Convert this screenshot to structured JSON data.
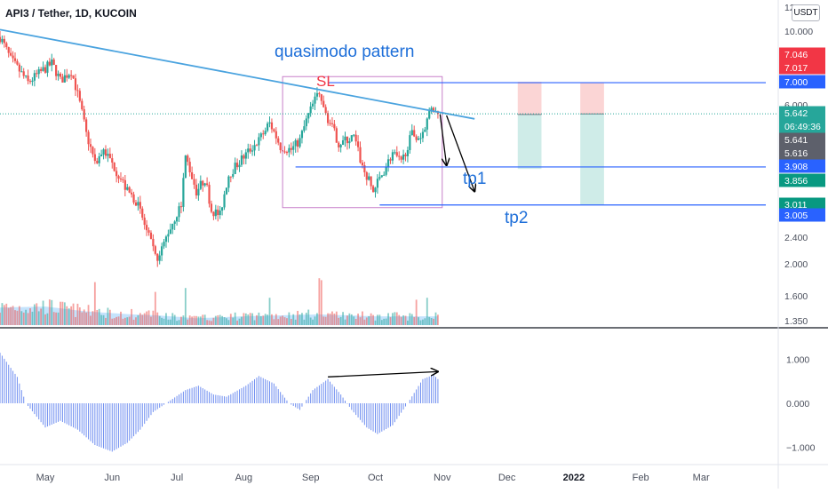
{
  "header": {
    "symbol": "API3 / Tether, 1D, KUCOIN",
    "currency": "USDT"
  },
  "colors": {
    "up": "#26a69a",
    "down": "#ef5350",
    "trendline": "#2962ff",
    "sky": "#4aa3df",
    "annotation_blue": "#1e6fd9",
    "sl_red": "#f23645",
    "box": "#c77ec9",
    "volume_area": "#bbdefb",
    "macd": "#6f8ef0"
  },
  "annotations": {
    "pattern": "quasimodo pattern",
    "sl": "SL",
    "tp1": "tp1",
    "tp2": "tp2"
  },
  "price_axis": {
    "ticks": [
      "12.000",
      "10.000",
      "6.000",
      "2.400",
      "2.000",
      "1.600",
      "1.350"
    ],
    "labels": [
      {
        "text": "7.046",
        "bg": "#f23645",
        "fg": "#ffffff"
      },
      {
        "text": "7.017",
        "bg": "#f23645",
        "fg": "#ffffff"
      },
      {
        "text": "7.000",
        "bg": "#2962ff",
        "fg": "#ffffff"
      },
      {
        "text": "5.642",
        "bg": "#26a69a",
        "fg": "#ffffff"
      },
      {
        "text": "06:49:36",
        "bg": "#26a69a",
        "fg": "#ffffff"
      },
      {
        "text": "5.641",
        "bg": "#5d606b",
        "fg": "#ffffff"
      },
      {
        "text": "5.616",
        "bg": "#5d606b",
        "fg": "#ffffff"
      },
      {
        "text": "3.908",
        "bg": "#2962ff",
        "fg": "#ffffff"
      },
      {
        "text": "3.856",
        "bg": "#089981",
        "fg": "#ffffff"
      },
      {
        "text": "3.011",
        "bg": "#089981",
        "fg": "#ffffff"
      },
      {
        "text": "3.005",
        "bg": "#2962ff",
        "fg": "#ffffff"
      }
    ]
  },
  "indicator_axis": {
    "ticks": [
      "1.000",
      "0.000",
      "−1.000"
    ]
  },
  "time_axis": {
    "labels": [
      "May",
      "Jun",
      "Jul",
      "Aug",
      "Sep",
      "Oct",
      "Nov",
      "Dec",
      "2022",
      "Feb",
      "Mar"
    ]
  },
  "chart_data": {
    "type": "candlestick",
    "x_start": "2021-04-10",
    "x_end": "2022-03-31",
    "y_scale": "log",
    "ylim": [
      1.35,
      12.0
    ],
    "anchors": [
      [
        "2021-04-10",
        9.6
      ],
      [
        "2021-04-15",
        8.2
      ],
      [
        "2021-04-23",
        7.0
      ],
      [
        "2021-05-04",
        8.0
      ],
      [
        "2021-05-08",
        7.1
      ],
      [
        "2021-05-13",
        7.6
      ],
      [
        "2021-05-20",
        4.9
      ],
      [
        "2021-05-24",
        4.0
      ],
      [
        "2021-05-28",
        4.4
      ],
      [
        "2021-06-08",
        3.3
      ],
      [
        "2021-06-12",
        3.1
      ],
      [
        "2021-06-17",
        2.5
      ],
      [
        "2021-06-22",
        2.0
      ],
      [
        "2021-06-26",
        2.4
      ],
      [
        "2021-07-03",
        3.0
      ],
      [
        "2021-07-05",
        4.2
      ],
      [
        "2021-07-10",
        3.3
      ],
      [
        "2021-07-14",
        3.6
      ],
      [
        "2021-07-17",
        2.9
      ],
      [
        "2021-07-21",
        2.8
      ],
      [
        "2021-07-25",
        3.7
      ],
      [
        "2021-08-01",
        4.2
      ],
      [
        "2021-08-08",
        4.7
      ],
      [
        "2021-08-13",
        5.3
      ],
      [
        "2021-08-18",
        4.5
      ],
      [
        "2021-08-23",
        4.4
      ],
      [
        "2021-08-27",
        4.7
      ],
      [
        "2021-08-31",
        5.6
      ],
      [
        "2021-09-05",
        6.6
      ],
      [
        "2021-09-07",
        5.8
      ],
      [
        "2021-09-14",
        4.6
      ],
      [
        "2021-09-21",
        4.8
      ],
      [
        "2021-09-25",
        3.9
      ],
      [
        "2021-09-30",
        3.3
      ],
      [
        "2021-10-04",
        3.7
      ],
      [
        "2021-10-09",
        4.3
      ],
      [
        "2021-10-13",
        4.0
      ],
      [
        "2021-10-18",
        4.9
      ],
      [
        "2021-10-22",
        4.8
      ],
      [
        "2021-10-27",
        5.8
      ],
      [
        "2021-10-30",
        5.64
      ]
    ],
    "volume_profile": [
      [
        "2021-04-10",
        0.9
      ],
      [
        "2021-05-01",
        0.95
      ],
      [
        "2021-05-20",
        0.7
      ],
      [
        "2021-06-10",
        0.55
      ],
      [
        "2021-06-22",
        0.5
      ],
      [
        "2021-07-10",
        0.35
      ],
      [
        "2021-08-01",
        0.45
      ],
      [
        "2021-09-05",
        0.55
      ],
      [
        "2021-10-01",
        0.45
      ],
      [
        "2021-10-30",
        0.45
      ]
    ],
    "volume_spikes": [
      [
        "2021-05-24",
        2.2
      ],
      [
        "2021-06-21",
        1.7
      ],
      [
        "2021-07-05",
        1.9
      ],
      [
        "2021-08-13",
        1.4
      ],
      [
        "2021-09-05",
        2.4
      ],
      [
        "2021-09-06",
        2.3
      ],
      [
        "2021-10-20",
        1.3
      ],
      [
        "2021-10-25",
        1.4
      ]
    ],
    "indicator_values": [
      [
        "2021-04-10",
        1.15
      ],
      [
        "2021-04-18",
        0.6
      ],
      [
        "2021-04-22",
        0.0
      ],
      [
        "2021-05-01",
        -0.55
      ],
      [
        "2021-05-08",
        -0.4
      ],
      [
        "2021-05-16",
        -0.6
      ],
      [
        "2021-05-24",
        -0.95
      ],
      [
        "2021-06-01",
        -1.1
      ],
      [
        "2021-06-08",
        -0.9
      ],
      [
        "2021-06-14",
        -0.6
      ],
      [
        "2021-06-20",
        -0.2
      ],
      [
        "2021-06-26",
        0.0
      ],
      [
        "2021-07-05",
        0.3
      ],
      [
        "2021-07-11",
        0.4
      ],
      [
        "2021-07-18",
        0.2
      ],
      [
        "2021-07-24",
        0.15
      ],
      [
        "2021-08-02",
        0.4
      ],
      [
        "2021-08-08",
        0.62
      ],
      [
        "2021-08-15",
        0.45
      ],
      [
        "2021-08-22",
        0.0
      ],
      [
        "2021-08-27",
        -0.15
      ],
      [
        "2021-09-02",
        0.3
      ],
      [
        "2021-09-09",
        0.55
      ],
      [
        "2021-09-15",
        0.2
      ],
      [
        "2021-09-20",
        -0.15
      ],
      [
        "2021-09-27",
        -0.55
      ],
      [
        "2021-10-02",
        -0.7
      ],
      [
        "2021-10-09",
        -0.5
      ],
      [
        "2021-10-16",
        0.0
      ],
      [
        "2021-10-23",
        0.55
      ],
      [
        "2021-10-28",
        0.65
      ],
      [
        "2021-10-30",
        0.55
      ]
    ],
    "trendline": {
      "from": [
        "2021-04-10",
        10.1
      ],
      "to": [
        "2021-11-16",
        5.45
      ]
    },
    "horizontal_levels": [
      {
        "from": "2021-09-09",
        "to": "2022-03-31",
        "y": 7.0
      },
      {
        "from": "2021-08-25",
        "to": "2022-03-31",
        "y": 3.908
      },
      {
        "from": "2021-10-03",
        "to": "2022-03-31",
        "y": 3.005
      }
    ],
    "quasimodo_box": {
      "x0": "2021-08-19",
      "x1": "2021-11-01",
      "y0": 2.95,
      "y1": 7.3
    },
    "position_boxes": [
      {
        "x0": "2021-12-06",
        "x1": "2021-12-17",
        "entry": 5.616,
        "stop": 7.046,
        "target": 3.856
      },
      {
        "x0": "2022-01-04",
        "x1": "2022-01-15",
        "entry": 5.641,
        "stop": 7.017,
        "target": 3.011
      }
    ],
    "arrows": [
      {
        "from": [
          "2021-10-31",
          5.62
        ],
        "to": [
          "2021-11-03",
          3.95
        ]
      },
      {
        "from": [
          "2021-11-03",
          5.58
        ],
        "to": [
          "2021-11-16",
          3.3
        ]
      }
    ],
    "divergence_arrow": {
      "from": [
        "2021-09-09",
        0.6
      ],
      "to": [
        "2021-10-30",
        0.72
      ]
    },
    "current_price": 5.642
  }
}
